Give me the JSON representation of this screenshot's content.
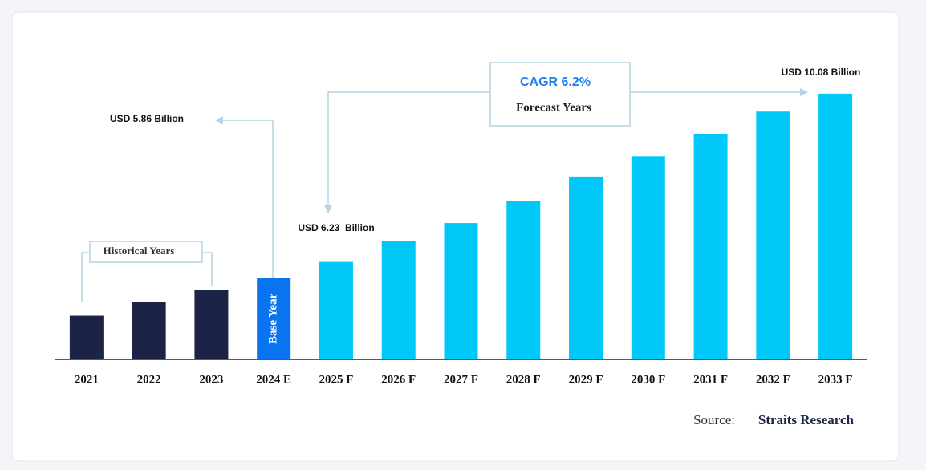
{
  "chart_data": {
    "type": "bar",
    "categories": [
      "2021",
      "2022",
      "2023",
      "2024 E",
      "2025 F",
      "2026 F",
      "2027 F",
      "2028 F",
      "2029 F",
      "2030 F",
      "2031 F",
      "2032 F",
      "2033 F"
    ],
    "values": [
      5.0,
      5.32,
      5.58,
      5.86,
      6.23,
      6.7,
      7.12,
      7.63,
      8.17,
      8.64,
      9.16,
      9.67,
      10.08
    ],
    "value_labels": [
      null,
      null,
      null,
      "USD 5.86 Billion",
      "USD 6.23  Billion",
      null,
      null,
      null,
      null,
      null,
      null,
      null,
      "USD 10.08 Billion"
    ],
    "colors": [
      "#1b2447",
      "#1b2447",
      "#1b2447",
      "#0a74f0",
      "#00c8f8",
      "#00c8f8",
      "#00c8f8",
      "#00c8f8",
      "#00c8f8",
      "#00c8f8",
      "#00c8f8",
      "#00c8f8",
      "#00c8f8"
    ],
    "ylim": [
      4,
      10.5
    ],
    "annotations": {
      "historical": "Historical Years",
      "base_year": "Base Year",
      "cagr": "CAGR 6.2%",
      "forecast": "Forecast Years",
      "source_label": "Source:",
      "source": "Straits Research"
    }
  }
}
